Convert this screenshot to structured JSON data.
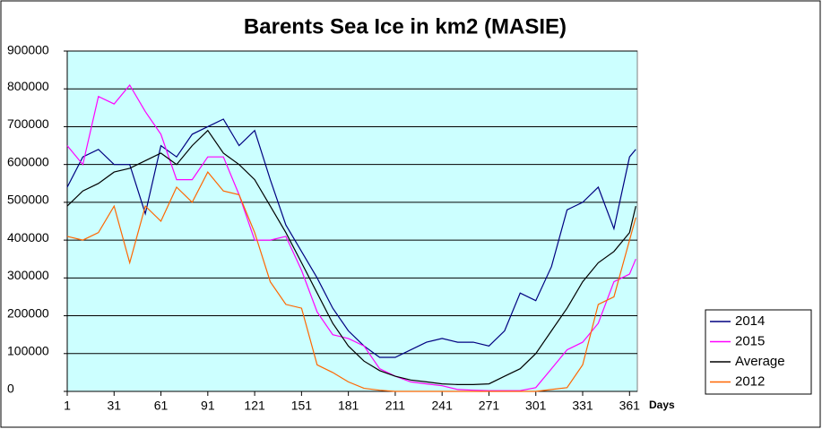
{
  "chart_data": {
    "type": "line",
    "title": "Barents Sea Ice in km2 (MASIE)",
    "x_label": "Days",
    "x": [
      1,
      11,
      21,
      31,
      41,
      51,
      61,
      71,
      81,
      91,
      101,
      111,
      121,
      131,
      141,
      151,
      161,
      171,
      181,
      191,
      201,
      211,
      221,
      231,
      241,
      251,
      261,
      271,
      281,
      291,
      301,
      311,
      321,
      331,
      341,
      351,
      361,
      365
    ],
    "xlim": [
      1,
      366
    ],
    "xticks": [
      1,
      31,
      61,
      91,
      121,
      151,
      181,
      211,
      241,
      271,
      301,
      331,
      361
    ],
    "ylim": [
      0,
      900000
    ],
    "yticks": [
      0,
      100000,
      200000,
      300000,
      400000,
      500000,
      600000,
      700000,
      800000,
      900000
    ],
    "grid": true,
    "legend": "lower right",
    "series": [
      {
        "name": "2014",
        "color": "#000080",
        "values": [
          540000,
          620000,
          640000,
          600000,
          600000,
          470000,
          650000,
          620000,
          680000,
          700000,
          720000,
          650000,
          690000,
          560000,
          440000,
          370000,
          300000,
          220000,
          160000,
          120000,
          90000,
          90000,
          110000,
          130000,
          140000,
          130000,
          130000,
          120000,
          160000,
          260000,
          240000,
          330000,
          480000,
          500000,
          540000,
          430000,
          620000,
          640000
        ]
      },
      {
        "name": "2015",
        "color": "#ff00ff",
        "values": [
          650000,
          600000,
          780000,
          760000,
          810000,
          740000,
          680000,
          560000,
          560000,
          620000,
          620000,
          520000,
          400000,
          400000,
          410000,
          320000,
          210000,
          150000,
          140000,
          120000,
          60000,
          40000,
          25000,
          20000,
          15000,
          5000,
          3000,
          2000,
          2000,
          2000,
          10000,
          60000,
          110000,
          130000,
          180000,
          290000,
          310000,
          350000
        ]
      },
      {
        "name": "Average",
        "color": "#000000",
        "values": [
          490000,
          530000,
          550000,
          580000,
          590000,
          610000,
          630000,
          600000,
          650000,
          690000,
          630000,
          600000,
          560000,
          490000,
          420000,
          340000,
          260000,
          180000,
          120000,
          80000,
          55000,
          40000,
          30000,
          25000,
          20000,
          18000,
          18000,
          20000,
          40000,
          60000,
          100000,
          160000,
          220000,
          290000,
          340000,
          370000,
          420000,
          490000
        ]
      },
      {
        "name": "2012",
        "color": "#ff6600",
        "values": [
          410000,
          400000,
          420000,
          490000,
          340000,
          490000,
          450000,
          540000,
          500000,
          580000,
          530000,
          520000,
          420000,
          290000,
          230000,
          220000,
          70000,
          50000,
          25000,
          8000,
          3000,
          0,
          0,
          0,
          0,
          0,
          0,
          0,
          0,
          0,
          0,
          5000,
          10000,
          70000,
          230000,
          250000,
          400000,
          460000
        ]
      }
    ]
  }
}
